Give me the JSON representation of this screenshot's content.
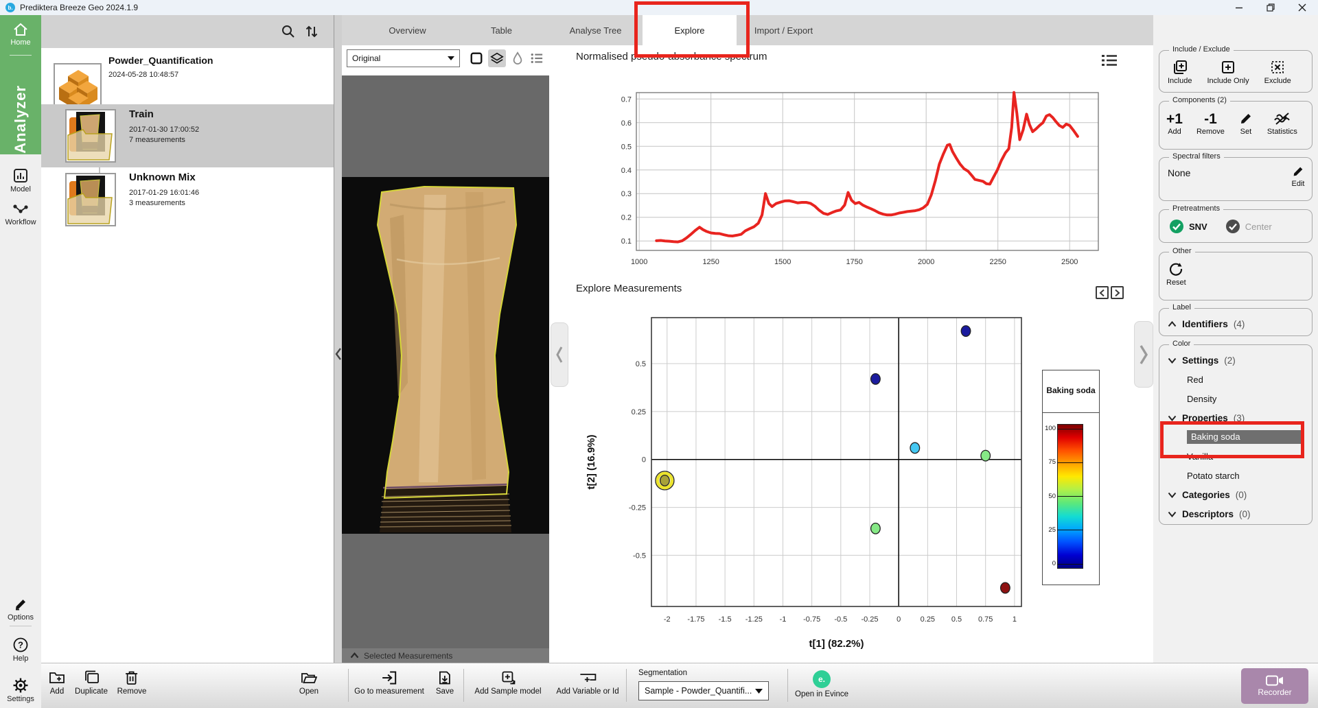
{
  "window": {
    "title": "Prediktera Breeze Geo 2024.1.9",
    "logo": "b."
  },
  "nav": {
    "home": "Home",
    "analyzer": "Analyzer",
    "model": "Model",
    "workflow": "Workflow",
    "options": "Options",
    "help": "Help",
    "help_mark": "?",
    "settings": "Settings"
  },
  "projects": {
    "items": [
      {
        "name": "Powder_Quantification",
        "date": "2024-05-28 10:48:57",
        "meta": ""
      },
      {
        "name": "Train",
        "date": "2017-01-30 17:00:52",
        "meta": "7 measurements"
      },
      {
        "name": "Unknown Mix",
        "date": "2017-01-29 16:01:46",
        "meta": "3 measurements"
      }
    ]
  },
  "tabs": {
    "items": [
      {
        "label": "Overview"
      },
      {
        "label": "Table"
      },
      {
        "label": "Analyse Tree"
      },
      {
        "label": "Explore"
      },
      {
        "label": "Import / Export"
      }
    ],
    "active": "Explore"
  },
  "viewer": {
    "layer_select": "Original",
    "selected_bar": "Selected Measurements"
  },
  "explore": {
    "spectrum_title": "Normalised pseudo-absorbance spectrum",
    "measurements_title": "Explore Measurements"
  },
  "chart_data": [
    {
      "type": "line",
      "title": "Normalised pseudo-absorbance spectrum",
      "color": "#e82420",
      "xlim": [
        990,
        2600
      ],
      "ylim": [
        0.06,
        0.727
      ],
      "xticks": [
        1000,
        1250,
        1500,
        1750,
        2000,
        2250,
        2500
      ],
      "yticks": [
        0.1,
        0.2,
        0.3,
        0.4,
        0.5,
        0.6,
        0.7
      ],
      "grid": true,
      "legend_position": "none",
      "points": [
        [
          1060,
          0.101
        ],
        [
          1075,
          0.102
        ],
        [
          1090,
          0.1
        ],
        [
          1105,
          0.099
        ],
        [
          1120,
          0.097
        ],
        [
          1135,
          0.096
        ],
        [
          1150,
          0.101
        ],
        [
          1165,
          0.113
        ],
        [
          1180,
          0.128
        ],
        [
          1195,
          0.144
        ],
        [
          1210,
          0.158
        ],
        [
          1222,
          0.148
        ],
        [
          1235,
          0.14
        ],
        [
          1250,
          0.134
        ],
        [
          1265,
          0.132
        ],
        [
          1280,
          0.131
        ],
        [
          1295,
          0.126
        ],
        [
          1310,
          0.122
        ],
        [
          1325,
          0.121
        ],
        [
          1340,
          0.124
        ],
        [
          1355,
          0.128
        ],
        [
          1370,
          0.143
        ],
        [
          1385,
          0.152
        ],
        [
          1400,
          0.16
        ],
        [
          1415,
          0.175
        ],
        [
          1428,
          0.21
        ],
        [
          1440,
          0.3
        ],
        [
          1452,
          0.258
        ],
        [
          1463,
          0.245
        ],
        [
          1477,
          0.258
        ],
        [
          1492,
          0.264
        ],
        [
          1507,
          0.269
        ],
        [
          1522,
          0.27
        ],
        [
          1537,
          0.266
        ],
        [
          1552,
          0.261
        ],
        [
          1567,
          0.263
        ],
        [
          1582,
          0.263
        ],
        [
          1597,
          0.259
        ],
        [
          1612,
          0.247
        ],
        [
          1627,
          0.23
        ],
        [
          1642,
          0.217
        ],
        [
          1657,
          0.212
        ],
        [
          1672,
          0.22
        ],
        [
          1687,
          0.227
        ],
        [
          1702,
          0.231
        ],
        [
          1716,
          0.252
        ],
        [
          1728,
          0.305
        ],
        [
          1740,
          0.272
        ],
        [
          1753,
          0.258
        ],
        [
          1766,
          0.263
        ],
        [
          1780,
          0.251
        ],
        [
          1794,
          0.243
        ],
        [
          1808,
          0.236
        ],
        [
          1822,
          0.228
        ],
        [
          1836,
          0.219
        ],
        [
          1850,
          0.213
        ],
        [
          1864,
          0.21
        ],
        [
          1878,
          0.21
        ],
        [
          1892,
          0.213
        ],
        [
          1906,
          0.218
        ],
        [
          1920,
          0.221
        ],
        [
          1934,
          0.224
        ],
        [
          1948,
          0.226
        ],
        [
          1962,
          0.228
        ],
        [
          1976,
          0.232
        ],
        [
          1990,
          0.24
        ],
        [
          2004,
          0.255
        ],
        [
          2018,
          0.295
        ],
        [
          2032,
          0.355
        ],
        [
          2046,
          0.425
        ],
        [
          2060,
          0.468
        ],
        [
          2074,
          0.505
        ],
        [
          2082,
          0.508
        ],
        [
          2092,
          0.478
        ],
        [
          2104,
          0.452
        ],
        [
          2118,
          0.425
        ],
        [
          2132,
          0.405
        ],
        [
          2146,
          0.395
        ],
        [
          2158,
          0.378
        ],
        [
          2170,
          0.36
        ],
        [
          2184,
          0.356
        ],
        [
          2198,
          0.352
        ],
        [
          2210,
          0.342
        ],
        [
          2222,
          0.34
        ],
        [
          2234,
          0.368
        ],
        [
          2248,
          0.4
        ],
        [
          2262,
          0.44
        ],
        [
          2276,
          0.472
        ],
        [
          2288,
          0.49
        ],
        [
          2298,
          0.58
        ],
        [
          2306,
          0.728
        ],
        [
          2316,
          0.64
        ],
        [
          2326,
          0.528
        ],
        [
          2338,
          0.57
        ],
        [
          2350,
          0.636
        ],
        [
          2360,
          0.592
        ],
        [
          2371,
          0.562
        ],
        [
          2383,
          0.574
        ],
        [
          2395,
          0.588
        ],
        [
          2407,
          0.6
        ],
        [
          2419,
          0.628
        ],
        [
          2430,
          0.634
        ],
        [
          2441,
          0.622
        ],
        [
          2452,
          0.605
        ],
        [
          2464,
          0.588
        ],
        [
          2476,
          0.58
        ],
        [
          2488,
          0.594
        ],
        [
          2500,
          0.588
        ],
        [
          2514,
          0.566
        ],
        [
          2528,
          0.542
        ]
      ]
    },
    {
      "type": "scatter",
      "title": "Explore Measurements",
      "xlabel": "t[1] (82.2%)",
      "ylabel": "t[2] (16.9%)",
      "xlim": [
        -2.135,
        1.06
      ],
      "ylim": [
        -0.767,
        0.74
      ],
      "xticks": [
        -2,
        -1.75,
        -1.5,
        -1.25,
        -1,
        -0.75,
        -0.5,
        -0.25,
        0,
        0.25,
        0.5,
        0.75,
        1
      ],
      "yticks": [
        0.5,
        0.25,
        0,
        -0.25,
        -0.5
      ],
      "grid": true,
      "points": [
        {
          "t1": 0.58,
          "t2": 0.67,
          "color": "#1b1b9e",
          "selected": false
        },
        {
          "t1": -0.2,
          "t2": 0.42,
          "color": "#1b1b9e",
          "selected": false
        },
        {
          "t1": 0.14,
          "t2": 0.06,
          "color": "#45c8f2",
          "selected": false
        },
        {
          "t1": 0.75,
          "t2": 0.02,
          "color": "#86e986",
          "selected": false
        },
        {
          "t1": -2.02,
          "t2": -0.11,
          "color": "#a8a239",
          "selected": true
        },
        {
          "t1": -0.2,
          "t2": -0.36,
          "color": "#86e986",
          "selected": false
        },
        {
          "t1": 0.92,
          "t2": -0.67,
          "color": "#8e1212",
          "selected": false
        }
      ],
      "legend": {
        "title": "Baking soda",
        "position": "right",
        "ticks": [
          100,
          75,
          50,
          25,
          0
        ],
        "colormap_top_to_bottom": [
          "#7a0000",
          "#e00000",
          "#ff5000",
          "#ffa000",
          "#ffe800",
          "#b4f046",
          "#5ae87d",
          "#14dcd2",
          "#00a6ff",
          "#0050ff",
          "#0000d2",
          "#000082"
        ]
      }
    }
  ],
  "right_panel": {
    "include_exclude": {
      "label": "Include / Exclude",
      "buttons": [
        {
          "label": "Include"
        },
        {
          "label": "Include Only"
        },
        {
          "label": "Exclude"
        }
      ]
    },
    "components": {
      "label": "Components (2)",
      "add_big": "+1",
      "remove_big": "-1",
      "buttons": [
        {
          "label": "Add"
        },
        {
          "label": "Remove"
        },
        {
          "label": "Set"
        },
        {
          "label": "Statistics"
        }
      ]
    },
    "spectral_filters": {
      "label": "Spectral filters",
      "value": "None",
      "edit_label": "Edit"
    },
    "pretreatments": {
      "label": "Pretreatments",
      "toggles": [
        {
          "label": "SNV",
          "on": true
        },
        {
          "label": "Center",
          "on": false
        }
      ]
    },
    "other": {
      "label": "Other",
      "reset_label": "Reset"
    },
    "label_group": {
      "label": "Label",
      "identifiers": "Identifiers",
      "identifiers_count": "(4)"
    },
    "color": {
      "label": "Color",
      "settings_title": "Settings",
      "settings_count": "(2)",
      "settings_items": [
        "Red",
        "Density"
      ],
      "properties_title": "Properties",
      "properties_count": "(3)",
      "properties_items": [
        "Baking soda",
        "Vanilla",
        "Potato starch"
      ],
      "selected_property": "Baking soda",
      "categories_title": "Categories",
      "categories_count": "(0)",
      "descriptors_title": "Descriptors",
      "descriptors_count": "(0)"
    }
  },
  "bottom_toolbar": {
    "add": "Add",
    "duplicate": "Duplicate",
    "remove": "Remove",
    "open": "Open",
    "goto": "Go to measurement",
    "save": "Save",
    "add_sample_model": "Add Sample model",
    "add_variable": "Add Variable or Id",
    "segmentation_label": "Segmentation",
    "segmentation_value": "Sample - Powder_Quantifi...",
    "evince_glyph": "e.",
    "evince": "Open in Evince",
    "recorder": "Recorder"
  },
  "annotations": {
    "highlight_color": "#e8251d"
  }
}
